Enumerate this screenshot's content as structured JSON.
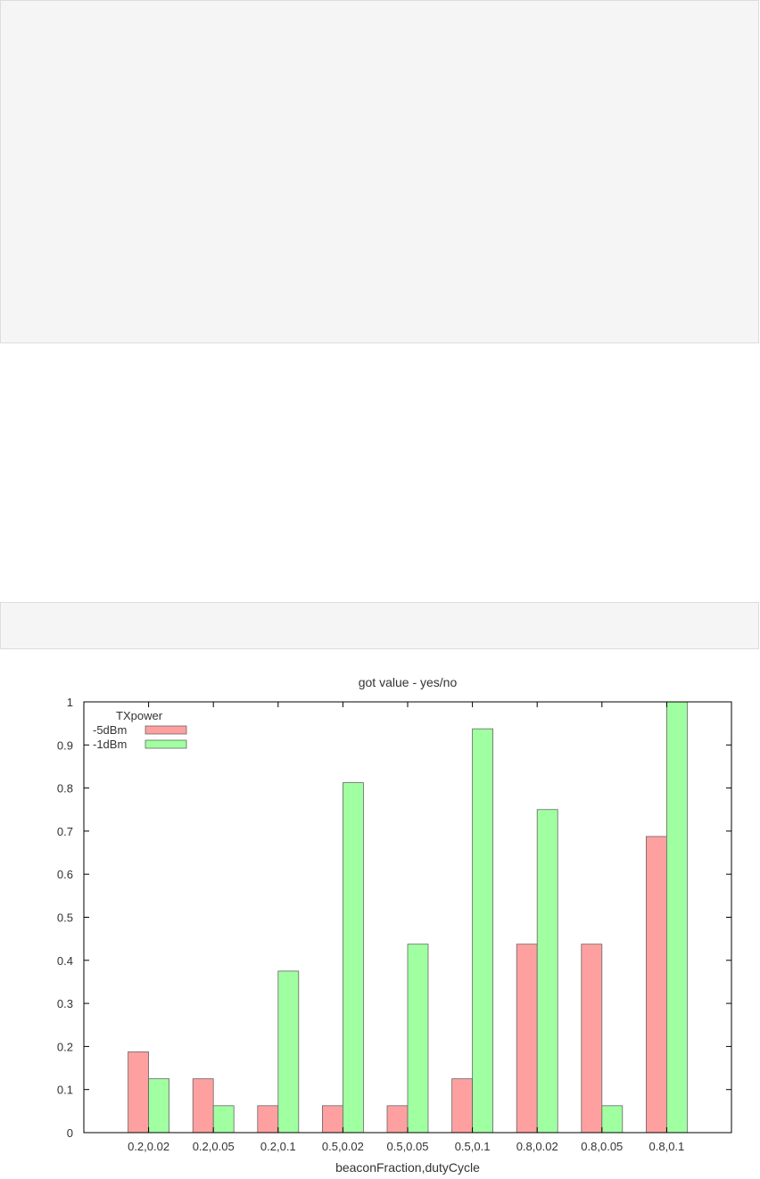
{
  "chart_data": {
    "type": "bar",
    "title": "got value - yes/no",
    "xlabel": "beaconFraction,dutyCycle",
    "ylabel": "",
    "ylim": [
      0,
      1
    ],
    "yticks": [
      "0",
      "0.1",
      "0.2",
      "0.3",
      "0.4",
      "0.5",
      "0.6",
      "0.7",
      "0.8",
      "0.9",
      "1"
    ],
    "categories": [
      "0.2,0.02",
      "0.2,0.05",
      "0.2,0.1",
      "0.5,0.02",
      "0.5,0.05",
      "0.5,0.1",
      "0.8,0.02",
      "0.8,0.05",
      "0.8,0.1"
    ],
    "legend_title": "TXpower",
    "legend_position": "top-left",
    "series": [
      {
        "name": "-5dBm",
        "color": "#ffa0a0",
        "values": [
          0.1875,
          0.125,
          0.0625,
          0.0625,
          0.0625,
          0.125,
          0.4375,
          0.4375,
          0.6875
        ]
      },
      {
        "name": "-1dBm",
        "color": "#a0ffa0",
        "values": [
          0.125,
          0.0625,
          0.375,
          0.8125,
          0.4375,
          0.9375,
          0.75,
          0.0625,
          1.0
        ]
      }
    ]
  }
}
